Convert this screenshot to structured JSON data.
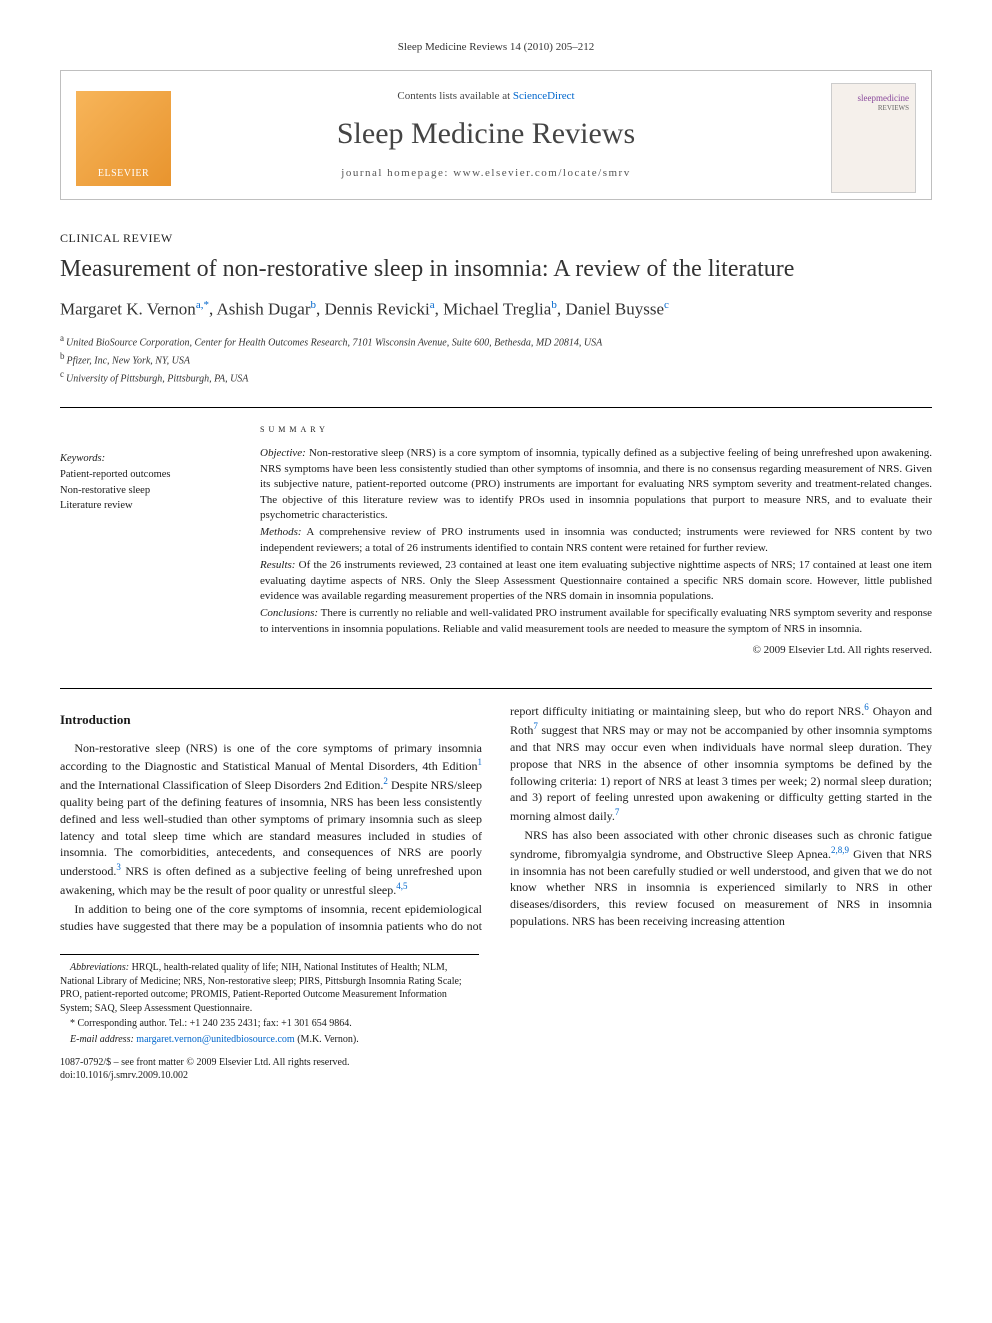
{
  "header": {
    "citation": "Sleep Medicine Reviews 14 (2010) 205–212",
    "contents_prefix": "Contents lists available at ",
    "contents_link": "ScienceDirect",
    "journal_name": "Sleep Medicine Reviews",
    "homepage_prefix": "journal homepage: ",
    "homepage_url": "www.elsevier.com/locate/smrv",
    "publisher_logo": "ELSEVIER",
    "cover_text_1": "sleepmedicine",
    "cover_text_2": "REVIEWS"
  },
  "article": {
    "type": "CLINICAL REVIEW",
    "title": "Measurement of non-restorative sleep in insomnia: A review of the literature",
    "authors_html": "Margaret K. Vernon",
    "authors": [
      {
        "name": "Margaret K. Vernon",
        "aff": "a,*"
      },
      {
        "name": "Ashish Dugar",
        "aff": "b"
      },
      {
        "name": "Dennis Revicki",
        "aff": "a"
      },
      {
        "name": "Michael Treglia",
        "aff": "b"
      },
      {
        "name": "Daniel Buysse",
        "aff": "c"
      }
    ],
    "affiliations": [
      {
        "key": "a",
        "text": "United BioSource Corporation, Center for Health Outcomes Research, 7101 Wisconsin Avenue, Suite 600, Bethesda, MD 20814, USA"
      },
      {
        "key": "b",
        "text": "Pfizer, Inc, New York, NY, USA"
      },
      {
        "key": "c",
        "text": "University of Pittsburgh, Pittsburgh, PA, USA"
      }
    ]
  },
  "keywords": {
    "heading": "Keywords:",
    "items": [
      "Patient-reported outcomes",
      "Non-restorative sleep",
      "Literature review"
    ]
  },
  "summary": {
    "heading": "SUMMARY",
    "objective_label": "Objective:",
    "objective": "Non-restorative sleep (NRS) is a core symptom of insomnia, typically defined as a subjective feeling of being unrefreshed upon awakening. NRS symptoms have been less consistently studied than other symptoms of insomnia, and there is no consensus regarding measurement of NRS. Given its subjective nature, patient-reported outcome (PRO) instruments are important for evaluating NRS symptom severity and treatment-related changes. The objective of this literature review was to identify PROs used in insomnia populations that purport to measure NRS, and to evaluate their psychometric characteristics.",
    "methods_label": "Methods:",
    "methods": "A comprehensive review of PRO instruments used in insomnia was conducted; instruments were reviewed for NRS content by two independent reviewers; a total of 26 instruments identified to contain NRS content were retained for further review.",
    "results_label": "Results:",
    "results": "Of the 26 instruments reviewed, 23 contained at least one item evaluating subjective nighttime aspects of NRS; 17 contained at least one item evaluating daytime aspects of NRS. Only the Sleep Assessment Questionnaire contained a specific NRS domain score. However, little published evidence was available regarding measurement properties of the NRS domain in insomnia populations.",
    "conclusions_label": "Conclusions:",
    "conclusions": "There is currently no reliable and well-validated PRO instrument available for specifically evaluating NRS symptom severity and response to interventions in insomnia populations. Reliable and valid measurement tools are needed to measure the symptom of NRS in insomnia.",
    "copyright": "© 2009 Elsevier Ltd. All rights reserved."
  },
  "body": {
    "intro_heading": "Introduction",
    "p1a": "Non-restorative sleep (NRS) is one of the core symptoms of primary insomnia according to the Diagnostic and Statistical Manual of Mental Disorders, 4th Edition",
    "p1b": " and the International Classification of Sleep Disorders 2nd Edition.",
    "p1c": " Despite NRS/sleep quality being part of the defining features of insomnia, NRS has been less consistently defined and less well-studied than other symptoms of primary insomnia such as sleep latency and total sleep time which are standard measures included in studies of insomnia. The comorbidities, antecedents, and consequences of NRS are poorly understood.",
    "p1d": " NRS is often defined as a subjective",
    "p1e": "feeling of being unrefreshed upon awakening, which may be the result of poor quality or unrestful sleep.",
    "p2a": "In addition to being one of the core symptoms of insomnia, recent epidemiological studies have suggested that there may be a population of insomnia patients who do not report difficulty initiating or maintaining sleep, but who do report NRS.",
    "p2b": " Ohayon and Roth",
    "p2c": " suggest that NRS may or may not be accompanied by other insomnia symptoms and that NRS may occur even when individuals have normal sleep duration. They propose that NRS in the absence of other insomnia symptoms be defined by the following criteria: 1) report of NRS at least 3 times per week; 2) normal sleep duration; and 3) report of feeling unrested upon awakening or difficulty getting started in the morning almost daily.",
    "p3a": "NRS has also been associated with other chronic diseases such as chronic fatigue syndrome, fibromyalgia syndrome, and Obstructive Sleep Apnea.",
    "p3b": " Given that NRS in insomnia has not been carefully studied or well understood, and given that we do not know whether NRS in insomnia is experienced similarly to NRS in other diseases/disorders, this review focused on measurement of NRS in insomnia populations. NRS has been receiving increasing attention"
  },
  "refs": {
    "r1": "1",
    "r2": "2",
    "r3": "3",
    "r45": "4,5",
    "r6": "6",
    "r7": "7",
    "r7b": "7",
    "r289": "2,8,9"
  },
  "footnotes": {
    "abbrev_label": "Abbreviations:",
    "abbrev": " HRQL, health-related quality of life; NIH, National Institutes of Health; NLM, National Library of Medicine; NRS, Non-restorative sleep; PIRS, Pittsburgh Insomnia Rating Scale; PRO, patient-reported outcome; PROMIS, Patient-Reported Outcome Measurement Information System; SAQ, Sleep Assessment Questionnaire.",
    "corr": "* Corresponding author. Tel.: +1 240 235 2431; fax: +1 301 654 9864.",
    "email_label": "E-mail address:",
    "email": "margaret.vernon@unitedbiosource.com",
    "email_suffix": " (M.K. Vernon).",
    "copyright_line": "1087-0792/$ – see front matter © 2009 Elsevier Ltd. All rights reserved.",
    "doi": "doi:10.1016/j.smrv.2009.10.002"
  },
  "colors": {
    "link": "#0066cc",
    "text": "#1a1a1a",
    "rule": "#000000",
    "banner_border": "#bfbfbf"
  }
}
